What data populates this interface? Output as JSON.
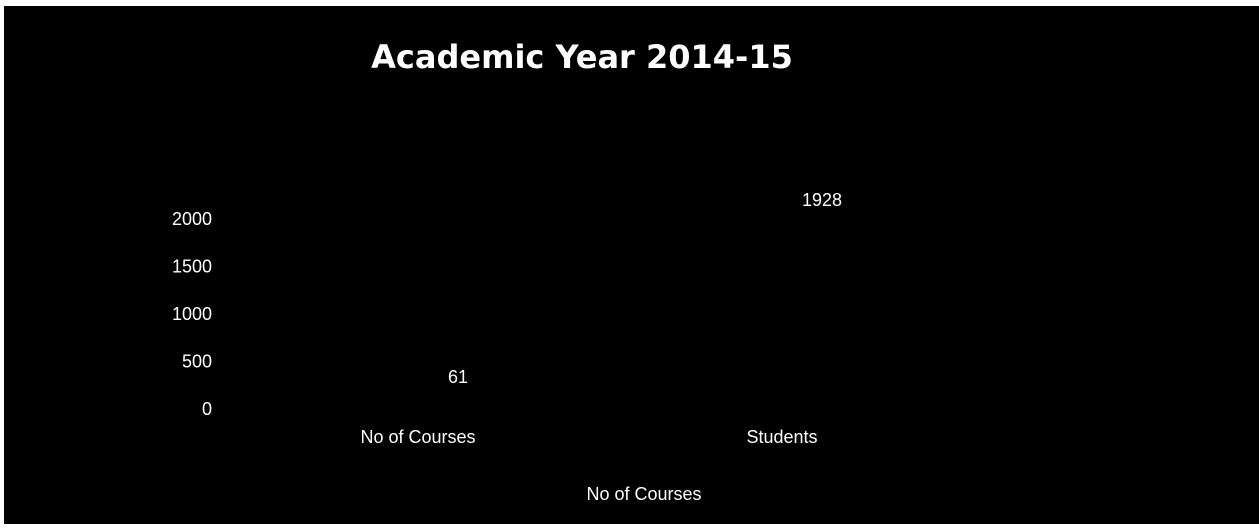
{
  "chart_data": {
    "type": "bar",
    "title": "Academic Year 2014-15",
    "categories": [
      "No of Courses",
      "Students"
    ],
    "series": [
      {
        "name": "No of Courses",
        "values": [
          61,
          1928
        ]
      }
    ],
    "data_labels": [
      "61",
      "1928"
    ],
    "yticks": [
      "0",
      "500",
      "1000",
      "1500",
      "2000"
    ],
    "ylim": [
      0,
      2000
    ],
    "grid": false,
    "legend": "bottom",
    "colors": {
      "background": "#000000",
      "text": "#ffffff",
      "bars": "#000000"
    }
  }
}
